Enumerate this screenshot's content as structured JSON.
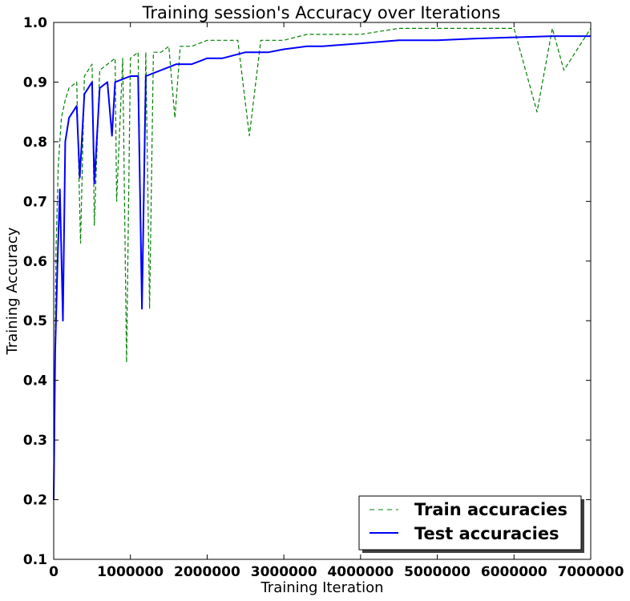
{
  "chart_data": {
    "type": "line",
    "title": "Training session's Accuracy over Iterations",
    "xlabel": "Training Iteration",
    "ylabel": "Training Accuracy",
    "xlim": [
      0,
      7000000
    ],
    "ylim": [
      0.1,
      1.0
    ],
    "xticks": [
      0,
      1000000,
      2000000,
      3000000,
      4000000,
      5000000,
      6000000,
      7000000
    ],
    "xtick_labels": [
      "0",
      "1000000",
      "2000000",
      "3000000",
      "4000000",
      "5000000",
      "6000000",
      "7000000"
    ],
    "yticks": [
      0.1,
      0.2,
      0.3,
      0.4,
      0.5,
      0.6,
      0.7,
      0.8,
      0.9,
      1.0
    ],
    "ytick_labels": [
      "0.1",
      "0.2",
      "0.3",
      "0.4",
      "0.5",
      "0.6",
      "0.7",
      "0.8",
      "0.9",
      "1.0"
    ],
    "grid": false,
    "legend_position": "lower-right",
    "series": [
      {
        "name": "Train accuracies",
        "color": "#008000",
        "style": "dashed",
        "x": [
          0,
          30000,
          60000,
          100000,
          150000,
          200000,
          300000,
          350000,
          400000,
          500000,
          530000,
          600000,
          700000,
          800000,
          820000,
          900000,
          950000,
          1000000,
          1100000,
          1150000,
          1200000,
          1250000,
          1300000,
          1400000,
          1500000,
          1580000,
          1650000,
          1800000,
          2000000,
          2200000,
          2400000,
          2550000,
          2700000,
          3000000,
          3300000,
          3500000,
          4000000,
          4500000,
          5000000,
          5500000,
          5900000,
          6000000,
          6300000,
          6500000,
          6650000,
          7000000
        ],
        "y": [
          0.22,
          0.62,
          0.76,
          0.84,
          0.87,
          0.89,
          0.9,
          0.63,
          0.91,
          0.93,
          0.66,
          0.92,
          0.93,
          0.94,
          0.7,
          0.94,
          0.43,
          0.94,
          0.95,
          0.52,
          0.95,
          0.52,
          0.95,
          0.95,
          0.96,
          0.84,
          0.96,
          0.96,
          0.97,
          0.97,
          0.97,
          0.81,
          0.97,
          0.97,
          0.98,
          0.98,
          0.98,
          0.99,
          0.99,
          0.99,
          0.99,
          0.99,
          0.85,
          0.99,
          0.92,
          0.99
        ]
      },
      {
        "name": "Test accuracies",
        "color": "#0000ff",
        "style": "solid",
        "x": [
          0,
          20000,
          50000,
          80000,
          120000,
          150000,
          200000,
          300000,
          340000,
          400000,
          500000,
          530000,
          600000,
          700000,
          760000,
          800000,
          1000000,
          1100000,
          1150000,
          1200000,
          1400000,
          1600000,
          1800000,
          2000000,
          2200000,
          2500000,
          2800000,
          3000000,
          3300000,
          3500000,
          4000000,
          4500000,
          5000000,
          5500000,
          6000000,
          6500000,
          7000000
        ],
        "y": [
          0.2,
          0.45,
          0.6,
          0.72,
          0.5,
          0.8,
          0.84,
          0.86,
          0.74,
          0.88,
          0.9,
          0.73,
          0.89,
          0.9,
          0.81,
          0.9,
          0.91,
          0.91,
          0.52,
          0.91,
          0.92,
          0.93,
          0.93,
          0.94,
          0.94,
          0.95,
          0.95,
          0.955,
          0.96,
          0.96,
          0.965,
          0.97,
          0.97,
          0.973,
          0.975,
          0.977,
          0.977
        ]
      }
    ]
  }
}
